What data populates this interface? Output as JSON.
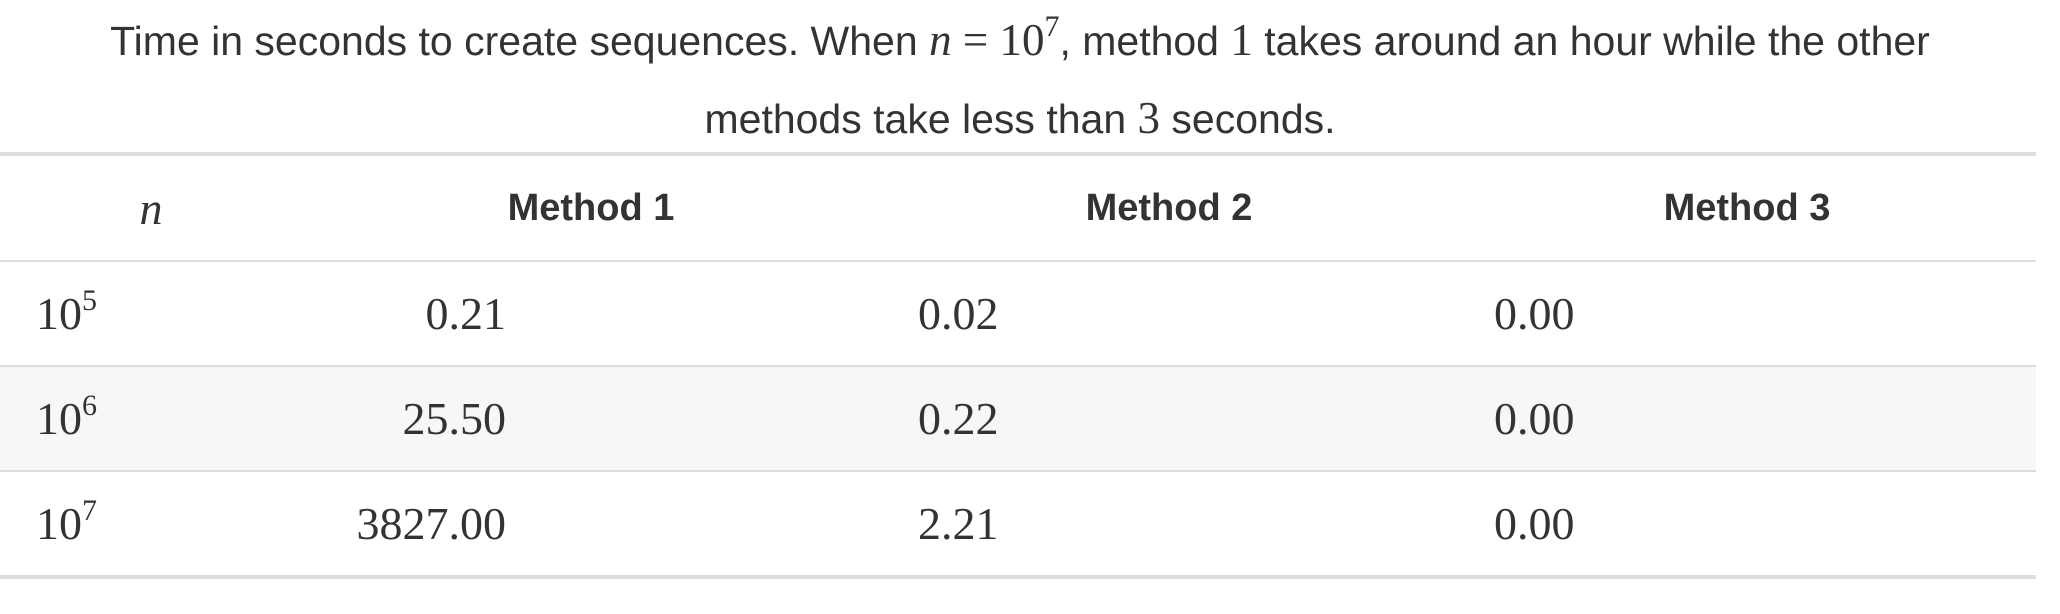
{
  "caption": {
    "part1": "Time in seconds to create sequences. When ",
    "var_n": "n",
    "equals": " = 10",
    "exp": "7",
    "part2": ", method ",
    "num1": "1",
    "part3": " takes around an hour while the other",
    "part4": "methods take less than ",
    "num3": "3",
    "part5": " seconds."
  },
  "table": {
    "headers": {
      "n": "n",
      "method1": "Method 1",
      "method2": "Method 2",
      "method3": "Method 3"
    },
    "rows": [
      {
        "base": "10",
        "exp": "5",
        "m1": "0.21",
        "m2": "0.02",
        "m3": "0.00"
      },
      {
        "base": "10",
        "exp": "6",
        "m1": "25.50",
        "m2": "0.22",
        "m3": "0.00"
      },
      {
        "base": "10",
        "exp": "7",
        "m1": "3827.00",
        "m2": "2.21",
        "m3": "0.00"
      }
    ]
  }
}
